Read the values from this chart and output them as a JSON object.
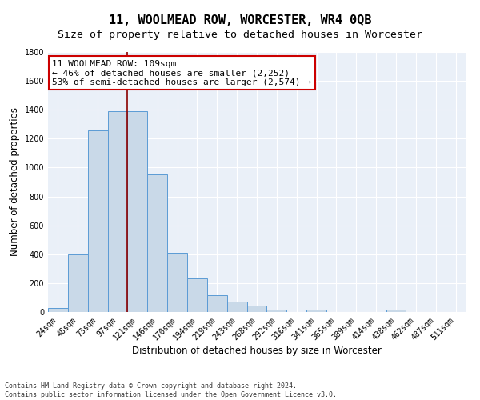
{
  "title": "11, WOOLMEAD ROW, WORCESTER, WR4 0QB",
  "subtitle": "Size of property relative to detached houses in Worcester",
  "xlabel": "Distribution of detached houses by size in Worcester",
  "ylabel": "Number of detached properties",
  "bar_color": "#c9d9e8",
  "bar_edge_color": "#5b9bd5",
  "bg_color": "#eaf0f8",
  "grid_color": "#ffffff",
  "categories": [
    "24sqm",
    "48sqm",
    "73sqm",
    "97sqm",
    "121sqm",
    "146sqm",
    "170sqm",
    "194sqm",
    "219sqm",
    "243sqm",
    "268sqm",
    "292sqm",
    "316sqm",
    "341sqm",
    "365sqm",
    "389sqm",
    "414sqm",
    "438sqm",
    "462sqm",
    "487sqm",
    "511sqm"
  ],
  "values": [
    30,
    400,
    1260,
    1390,
    1390,
    950,
    410,
    230,
    115,
    70,
    45,
    18,
    0,
    18,
    0,
    0,
    0,
    18,
    0,
    0,
    0
  ],
  "vline_x": 4.0,
  "vline_color": "#8b0000",
  "annotation_text": "11 WOOLMEAD ROW: 109sqm\n← 46% of detached houses are smaller (2,252)\n53% of semi-detached houses are larger (2,574) →",
  "annotation_box_color": "#ffffff",
  "annotation_box_edge_color": "#cc0000",
  "ylim": [
    0,
    1800
  ],
  "yticks": [
    0,
    200,
    400,
    600,
    800,
    1000,
    1200,
    1400,
    1600,
    1800
  ],
  "footnote": "Contains HM Land Registry data © Crown copyright and database right 2024.\nContains public sector information licensed under the Open Government Licence v3.0.",
  "title_fontsize": 11,
  "subtitle_fontsize": 9.5,
  "xlabel_fontsize": 8.5,
  "ylabel_fontsize": 8.5,
  "tick_fontsize": 7,
  "annotation_fontsize": 8,
  "footnote_fontsize": 6
}
